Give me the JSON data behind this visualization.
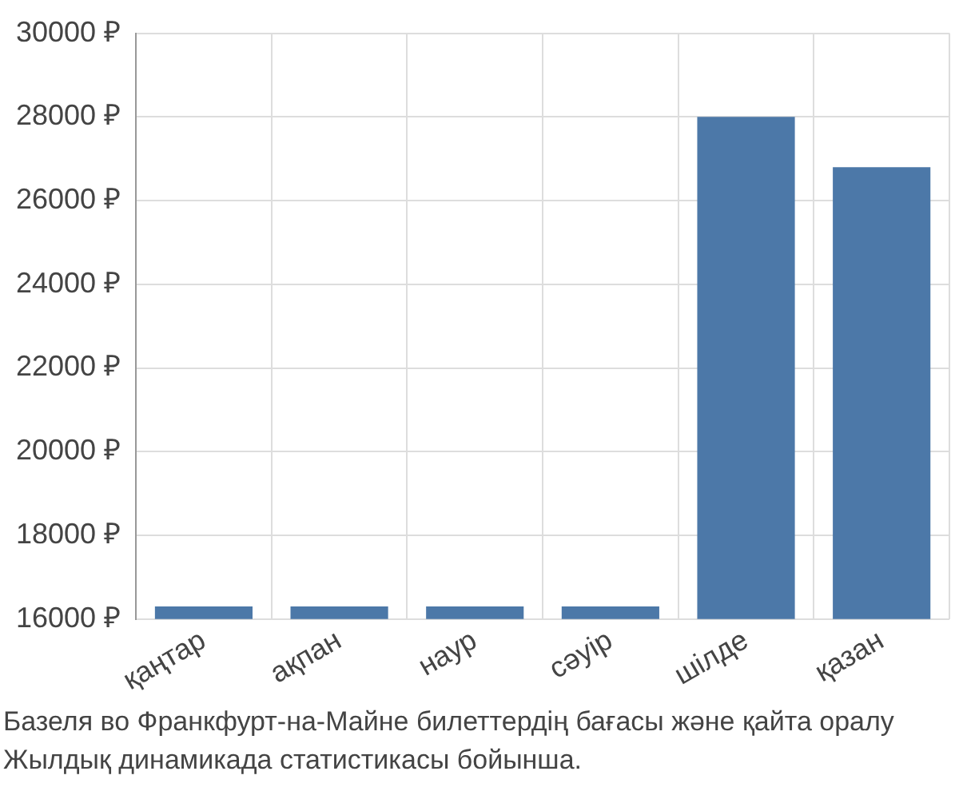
{
  "chart_data": {
    "type": "bar",
    "categories": [
      "қаңтар",
      "ақпан",
      "наур",
      "сәуір",
      "шілде",
      "қазан"
    ],
    "values": [
      16300,
      16300,
      16300,
      16300,
      28000,
      26800
    ],
    "color": "#4c78a8",
    "ylim": [
      16000,
      30000
    ],
    "yticks": [
      {
        "value": 16000,
        "label": "16000 ₽"
      },
      {
        "value": 18000,
        "label": "18000 ₽"
      },
      {
        "value": 20000,
        "label": "20000 ₽"
      },
      {
        "value": 22000,
        "label": "22000 ₽"
      },
      {
        "value": 24000,
        "label": "24000 ₽"
      },
      {
        "value": 26000,
        "label": "26000 ₽"
      },
      {
        "value": 28000,
        "label": "28000 ₽"
      },
      {
        "value": 30000,
        "label": "30000 ₽"
      }
    ],
    "grid": true,
    "annotations": [
      "Базеля во Франкфурт-на-Майне билеттердің бағасы және қайта оралу",
      "Жылдық динамикада статистикасы бойынша."
    ]
  }
}
